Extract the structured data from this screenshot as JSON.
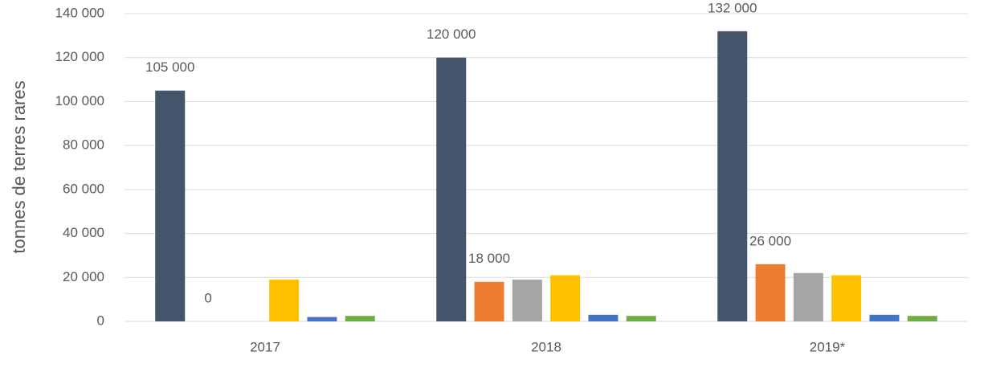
{
  "chart_data": {
    "type": "bar",
    "y_label": "tonnes de terres rares",
    "categories": [
      "2017",
      "2018",
      "2019*"
    ],
    "series": [
      {
        "color": "#44546a",
        "values": [
          105000,
          120000,
          132000
        ],
        "value_labels": [
          "105 000",
          "120 000",
          "132 000"
        ]
      },
      {
        "color": "#ed7d31",
        "values": [
          0,
          18000,
          26000
        ],
        "value_labels": [
          "0",
          "18 000",
          "26 000"
        ]
      },
      {
        "color": "#a5a5a5",
        "values": [
          null,
          19000,
          22000
        ]
      },
      {
        "color": "#ffc000",
        "values": [
          19000,
          21000,
          21000
        ]
      },
      {
        "color": "#4472c4",
        "values": [
          2000,
          3000,
          3000
        ]
      },
      {
        "color": "#70ad47",
        "values": [
          2500,
          2500,
          2500
        ]
      }
    ],
    "ylim": [
      0,
      140000
    ],
    "yticks": [
      0,
      {
        "value": 20000,
        "label": "20 000"
      },
      {
        "value": 40000,
        "label": "40 000"
      },
      {
        "value": 60000,
        "label": "60 000"
      },
      {
        "value": 80000,
        "label": "80 000"
      },
      {
        "value": 100000,
        "label": "100 000"
      },
      {
        "value": 120000,
        "label": "120 000"
      },
      {
        "value": 140000,
        "label": "140 000"
      }
    ],
    "grid": true
  }
}
